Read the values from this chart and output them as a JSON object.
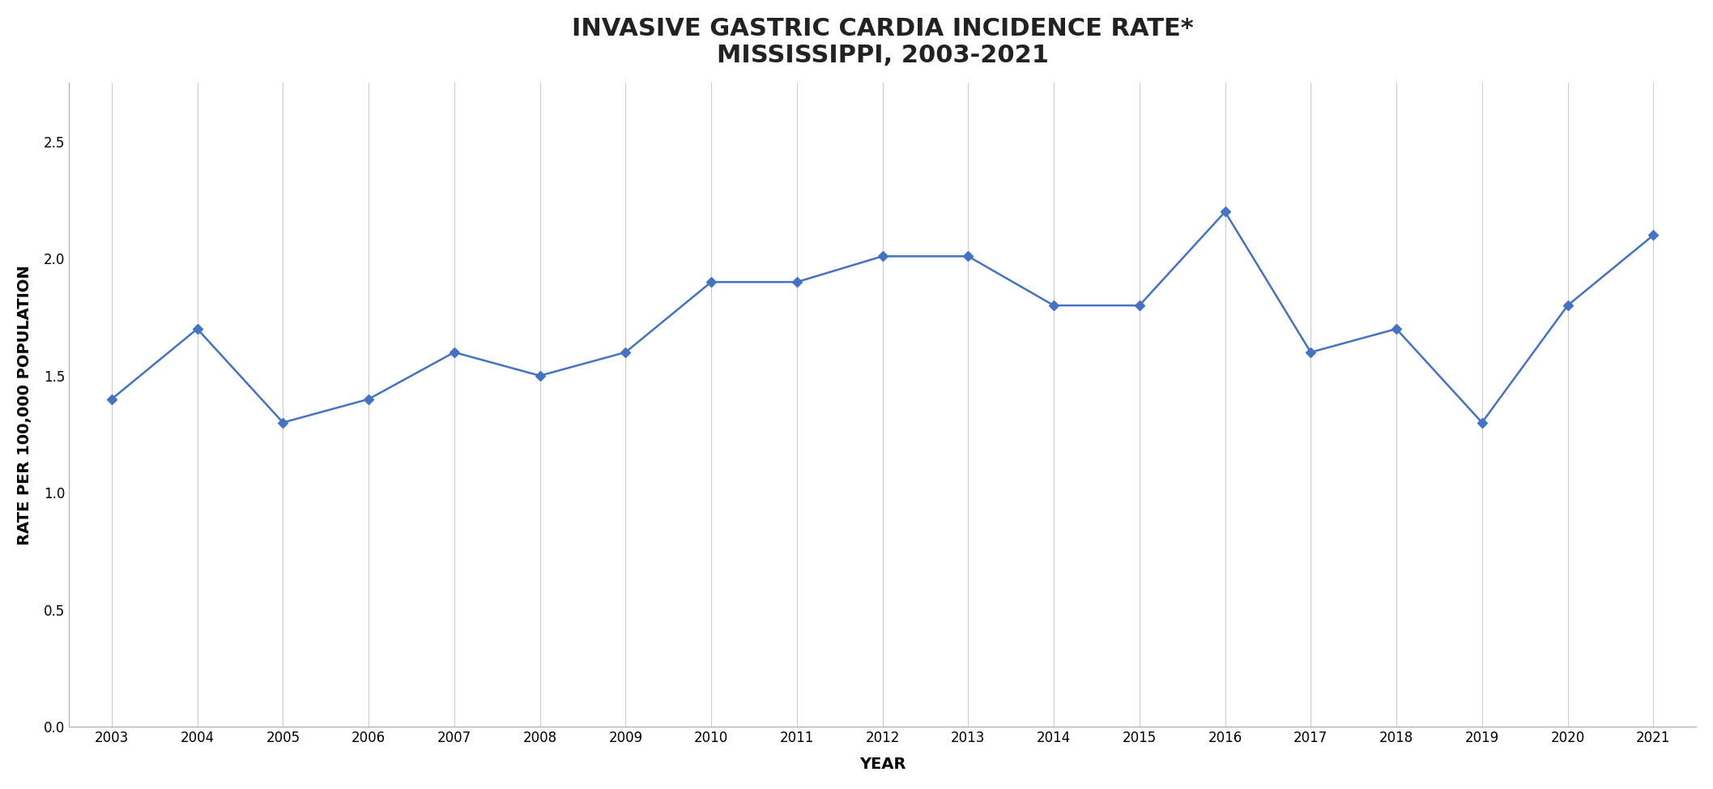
{
  "title_line1": "INVASIVE GASTRIC CARDIA INCIDENCE RATE*",
  "title_line2": "MISSISSIPPI, 2003-2021",
  "xlabel": "YEAR",
  "ylabel": "RATE PER 100,000 POPULATION",
  "years": [
    2003,
    2004,
    2005,
    2006,
    2007,
    2008,
    2009,
    2010,
    2011,
    2012,
    2013,
    2014,
    2015,
    2016,
    2017,
    2018,
    2019,
    2020,
    2021
  ],
  "values": [
    1.4,
    1.7,
    1.3,
    1.4,
    1.6,
    1.5,
    1.6,
    1.9,
    1.9,
    2.01,
    2.01,
    1.8,
    1.8,
    2.2,
    1.6,
    1.7,
    1.3,
    1.8,
    2.1
  ],
  "line_color": "#4472C4",
  "marker": "D",
  "marker_size": 6,
  "line_width": 1.8,
  "ylim": [
    0.0,
    2.75
  ],
  "yticks": [
    0.0,
    0.5,
    1.0,
    1.5,
    2.0,
    2.5
  ],
  "title_fontsize": 22,
  "axis_label_fontsize": 14,
  "tick_fontsize": 12,
  "background_color": "#ffffff",
  "grid_color": "#cccccc"
}
